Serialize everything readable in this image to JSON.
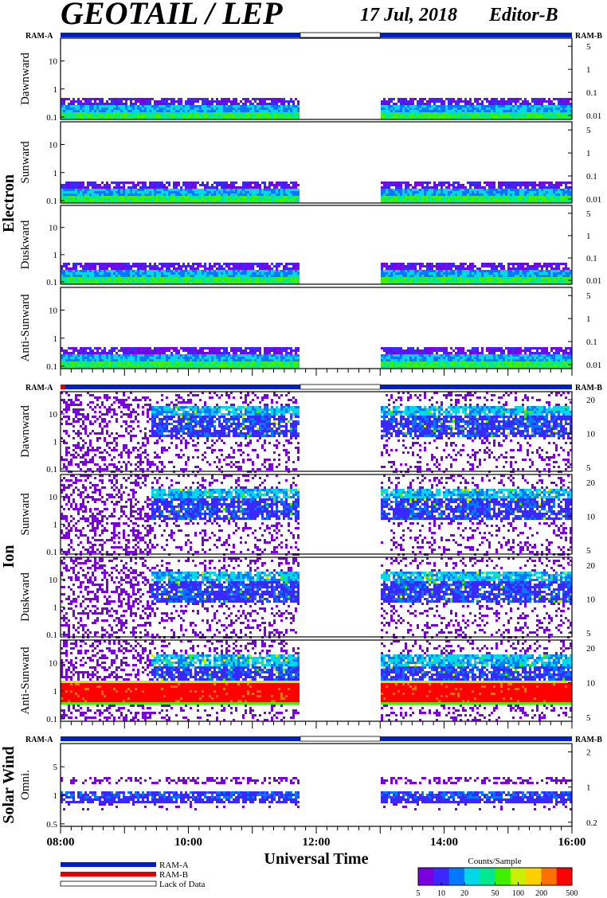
{
  "header": {
    "title": "GEOTAIL / LEP",
    "date": "17 Jul, 2018",
    "editor": "Editor-B"
  },
  "colors": {
    "ram_a": "#0020c0",
    "ram_b": "#e00000",
    "lack": "#ffffff",
    "scale": [
      "#7a00e0",
      "#3a28ff",
      "#0078ff",
      "#00d8e8",
      "#00e890",
      "#40f000",
      "#c8f000",
      "#ffd000",
      "#ff7000",
      "#ff0000"
    ]
  },
  "groups": {
    "electron": "Electron",
    "ion": "Ion",
    "solar_wind": "Solar Wind"
  },
  "ram_labels": {
    "left": "RAM-A",
    "right": "RAM-B"
  },
  "chart_data": {
    "type": "heatmap",
    "x_axis": {
      "label": "Universal Time",
      "ticks": [
        "08:00",
        "10:00",
        "12:00",
        "14:00",
        "16:00"
      ],
      "range": [
        "08:00",
        "16:00"
      ]
    },
    "data_gaps": [
      [
        "11:45",
        "13:00"
      ]
    ],
    "ram_state": {
      "electron": [
        {
          "from": "08:00",
          "to": "11:45",
          "mode": "RAM-A"
        },
        {
          "from": "11:45",
          "to": "13:00",
          "mode": "Lack of Data"
        },
        {
          "from": "13:00",
          "to": "16:00",
          "mode": "RAM-A"
        }
      ],
      "ion": [
        {
          "from": "08:00",
          "to": "11:45",
          "mode": "RAM-A"
        },
        {
          "from": "11:45",
          "to": "13:00",
          "mode": "Lack of Data"
        },
        {
          "from": "13:00",
          "to": "16:00",
          "mode": "RAM-A"
        }
      ],
      "solar_wind": [
        {
          "from": "08:00",
          "to": "11:45",
          "mode": "RAM-A"
        },
        {
          "from": "11:45",
          "to": "13:00",
          "mode": "Lack of Data"
        },
        {
          "from": "13:00",
          "to": "16:00",
          "mode": "RAM-A"
        }
      ]
    },
    "panels": [
      {
        "group": "electron",
        "label": "Dawnward",
        "left_ticks": [
          "10",
          "1",
          "0.1"
        ],
        "right_ticks": [
          "5",
          "1",
          "0.1",
          "0.01"
        ]
      },
      {
        "group": "electron",
        "label": "Sunward",
        "left_ticks": [
          "10",
          "1",
          "0.1"
        ],
        "right_ticks": [
          "5",
          "1",
          "0.1",
          "0.01"
        ]
      },
      {
        "group": "electron",
        "label": "Duskward",
        "left_ticks": [
          "10",
          "1",
          "0.1"
        ],
        "right_ticks": [
          "5",
          "1",
          "0.1",
          "0.01"
        ]
      },
      {
        "group": "electron",
        "label": "Anti-Sunward",
        "left_ticks": [
          "10",
          "1",
          "0.1"
        ],
        "right_ticks": [
          "5",
          "1",
          "0.1",
          "0.01"
        ]
      },
      {
        "group": "ion",
        "label": "Dawnward",
        "left_ticks": [
          "10",
          "1",
          "0.1"
        ],
        "right_ticks": [
          "20",
          "10",
          "5"
        ]
      },
      {
        "group": "ion",
        "label": "Sunward",
        "left_ticks": [
          "10",
          "1",
          "0.1"
        ],
        "right_ticks": [
          "20",
          "10",
          "5"
        ]
      },
      {
        "group": "ion",
        "label": "Duskward",
        "left_ticks": [
          "10",
          "1",
          "0.1"
        ],
        "right_ticks": [
          "20",
          "10",
          "5"
        ]
      },
      {
        "group": "ion",
        "label": "Anti-Sunward",
        "left_ticks": [
          "10",
          "1",
          "0.1"
        ],
        "right_ticks": [
          "20",
          "10",
          "5"
        ]
      },
      {
        "group": "solar_wind",
        "label": "Omni.",
        "left_ticks": [
          "5",
          "1",
          "0.5"
        ],
        "right_ticks": [
          "2",
          "1",
          "0.2"
        ]
      }
    ],
    "legend": {
      "items": [
        "RAM-A",
        "RAM-B",
        "Lack of Data"
      ]
    },
    "colorbar": {
      "title": "Counts/Sample",
      "ticks": [
        "5",
        "10",
        "20",
        "50",
        "100",
        "200",
        "500"
      ]
    }
  }
}
